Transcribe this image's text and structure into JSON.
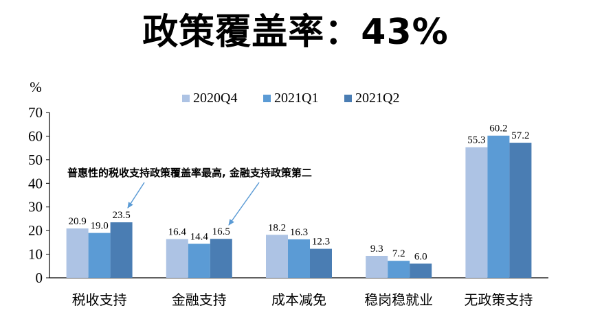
{
  "title": "政策覆盖率：43%",
  "chart_data": {
    "type": "bar",
    "y_unit_label": "%",
    "categories": [
      "税收支持",
      "金融支持",
      "成本减免",
      "稳岗稳就业",
      "无政策支持"
    ],
    "series": [
      {
        "name": "2020Q4",
        "color": "#adc3e4",
        "values": [
          20.9,
          16.4,
          18.2,
          9.3,
          55.3
        ]
      },
      {
        "name": "2021Q1",
        "color": "#5b9bd5",
        "values": [
          19.0,
          14.4,
          16.3,
          7.2,
          60.2
        ]
      },
      {
        "name": "2021Q2",
        "color": "#4a7db3",
        "values": [
          23.5,
          16.5,
          12.3,
          6.0,
          57.2
        ]
      }
    ],
    "ylim": [
      0,
      70
    ],
    "yticks": [
      0,
      10,
      20,
      30,
      40,
      50,
      60,
      70
    ],
    "grid": false,
    "legend_position": "top",
    "annotation": {
      "text": "普惠性的税收支持政策覆盖率最高, 金融支持政策第二",
      "arrow_color": "#5b9bd5"
    }
  }
}
